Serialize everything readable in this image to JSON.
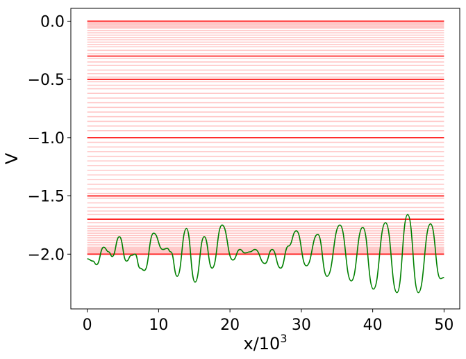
{
  "chart_data": {
    "type": "line",
    "title": "",
    "xlabel": "x/10",
    "xlabel_superscript": "3",
    "ylabel": "V",
    "xlim": [
      -2.3,
      52.2
    ],
    "ylim": [
      -2.47,
      0.11
    ],
    "xticks": [
      0,
      10,
      20,
      30,
      40,
      50
    ],
    "xtick_labels": [
      "0",
      "10",
      "20",
      "30",
      "40",
      "50"
    ],
    "yticks": [
      0.0,
      -0.5,
      -1.0,
      -1.5,
      -2.0
    ],
    "ytick_labels": [
      "0.0",
      "−0.5",
      "−1.0",
      "−1.5",
      "−2.0"
    ],
    "grid": false,
    "legend": "none",
    "colors": {
      "curve": "#008000",
      "levels": "#ff0000",
      "axes": "#000000"
    },
    "horizontal_levels": {
      "x_range": [
        0,
        50
      ],
      "strong": [
        0.0,
        -0.3,
        -0.5,
        -1.0,
        -1.5,
        -1.7,
        -2.0
      ],
      "faint": [
        -0.01,
        -0.02,
        -0.03,
        -0.04,
        -0.05,
        -0.06,
        -0.08,
        -0.1,
        -0.12,
        -0.14,
        -0.16,
        -0.18,
        -0.2,
        -0.22,
        -0.25,
        -0.28,
        -0.32,
        -0.35,
        -0.38,
        -0.42,
        -0.45,
        -0.48,
        -0.52,
        -0.55,
        -0.58,
        -0.62,
        -0.66,
        -0.7,
        -0.74,
        -0.78,
        -0.82,
        -0.86,
        -0.9,
        -0.94,
        -1.04,
        -1.08,
        -1.12,
        -1.16,
        -1.2,
        -1.24,
        -1.28,
        -1.32,
        -1.36,
        -1.4,
        -1.44,
        -1.48,
        -1.52,
        -1.56,
        -1.6,
        -1.63,
        -1.66,
        -1.73,
        -1.76,
        -1.78,
        -1.8,
        -1.82,
        -1.84,
        -1.86,
        -1.88,
        -1.9,
        -1.92,
        -1.94,
        -1.95,
        -1.96,
        -1.97,
        -1.98,
        -1.99
      ]
    },
    "series": [
      {
        "points": [
          [
            0.0,
            -2.04
          ],
          [
            0.8,
            -2.06
          ],
          [
            1.3,
            -2.09
          ],
          [
            2.3,
            -1.94
          ],
          [
            3.0,
            -1.98
          ],
          [
            3.5,
            -2.02
          ],
          [
            4.5,
            -1.85
          ],
          [
            5.5,
            -2.06
          ],
          [
            6.2,
            -2.01
          ],
          [
            6.7,
            -2.0
          ],
          [
            7.4,
            -2.12
          ],
          [
            8.0,
            -2.14
          ],
          [
            9.3,
            -1.82
          ],
          [
            10.6,
            -1.96
          ],
          [
            11.2,
            -1.95
          ],
          [
            11.7,
            -1.98
          ],
          [
            12.6,
            -2.19
          ],
          [
            13.9,
            -1.78
          ],
          [
            15.1,
            -2.24
          ],
          [
            16.4,
            -1.85
          ],
          [
            17.5,
            -2.12
          ],
          [
            18.9,
            -1.75
          ],
          [
            20.4,
            -2.05
          ],
          [
            21.4,
            -1.96
          ],
          [
            22.1,
            -1.99
          ],
          [
            22.8,
            -1.98
          ],
          [
            23.5,
            -1.96
          ],
          [
            24.9,
            -2.08
          ],
          [
            25.9,
            -1.96
          ],
          [
            27.1,
            -2.12
          ],
          [
            28.2,
            -1.93
          ],
          [
            29.3,
            -1.8
          ],
          [
            30.7,
            -2.1
          ],
          [
            32.3,
            -1.83
          ],
          [
            33.6,
            -2.19
          ],
          [
            35.4,
            -1.75
          ],
          [
            37.0,
            -2.23
          ],
          [
            38.6,
            -1.77
          ],
          [
            40.1,
            -2.3
          ],
          [
            41.8,
            -1.73
          ],
          [
            43.4,
            -2.33
          ],
          [
            44.9,
            -1.66
          ],
          [
            46.4,
            -2.33
          ],
          [
            48.1,
            -1.74
          ],
          [
            49.5,
            -2.21
          ],
          [
            50.0,
            -2.2
          ]
        ]
      }
    ]
  }
}
